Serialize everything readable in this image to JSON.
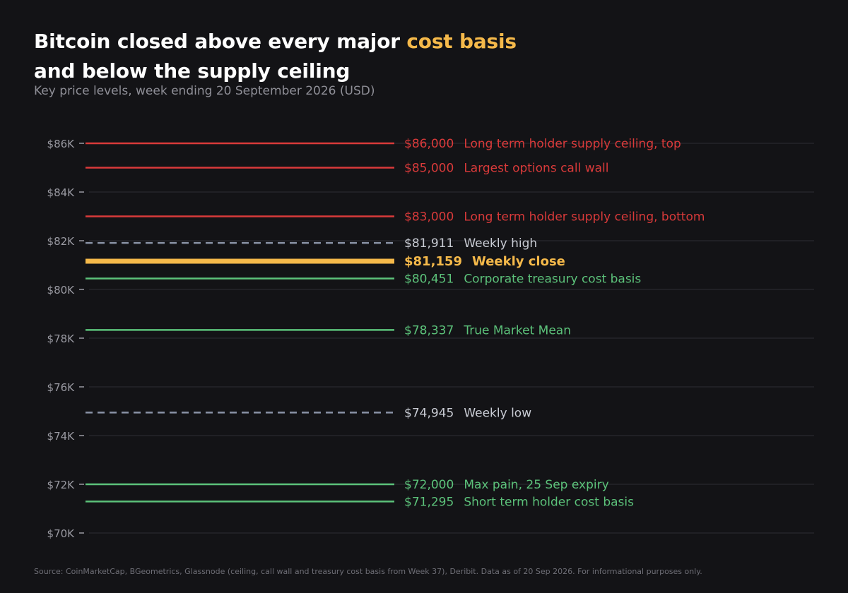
{
  "title": {
    "before": "Bitcoin closed above every major ",
    "highlight": "cost basis",
    "after": "and below the supply ceiling"
  },
  "subtitle": "Key price levels, week ending 20 September 2026 (USD)",
  "source": "Source: CoinMarketCap, BGeometrics, Glassnode (ceiling, call wall and treasury cost basis from Week 37), Deribit. Data as of 20 Sep 2026. For informational purposes only.",
  "colors": {
    "resistance": "#d93a3a",
    "support": "#5cc27a",
    "range": "#8a93a6",
    "close": "#f5b94a",
    "grid": "#2e2e34",
    "tick": "#9a9aa2"
  },
  "chart_data": {
    "type": "line",
    "title": "Bitcoin closed above every major cost basis and below the supply ceiling",
    "subtitle": "Key price levels, week ending 20 September 2026 (USD)",
    "ylim": [
      70000,
      86000
    ],
    "yticks": [
      {
        "value": 86000,
        "label": "$86K"
      },
      {
        "value": 84000,
        "label": "$84K"
      },
      {
        "value": 82000,
        "label": "$82K"
      },
      {
        "value": 80000,
        "label": "$80K"
      },
      {
        "value": 78000,
        "label": "$78K"
      },
      {
        "value": 76000,
        "label": "$76K"
      },
      {
        "value": 74000,
        "label": "$74K"
      },
      {
        "value": 72000,
        "label": "$72K"
      },
      {
        "value": 70000,
        "label": "$70K"
      }
    ],
    "grid": true,
    "levels": [
      {
        "value": 86000,
        "value_label": "$86,000",
        "name": "Long term holder supply ceiling, top",
        "kind": "resistance",
        "style": "solid"
      },
      {
        "value": 85000,
        "value_label": "$85,000",
        "name": "Largest options call wall",
        "kind": "resistance",
        "style": "solid"
      },
      {
        "value": 83000,
        "value_label": "$83,000",
        "name": "Long term holder supply ceiling, bottom",
        "kind": "resistance",
        "style": "solid"
      },
      {
        "value": 81911,
        "value_label": "$81,911",
        "name": "Weekly high",
        "kind": "range",
        "style": "dashed"
      },
      {
        "value": 81159,
        "value_label": "$81,159",
        "name": "Weekly close",
        "kind": "close",
        "style": "thick"
      },
      {
        "value": 80451,
        "value_label": "$80,451",
        "name": "Corporate treasury cost basis",
        "kind": "support",
        "style": "solid"
      },
      {
        "value": 78337,
        "value_label": "$78,337",
        "name": "True Market Mean",
        "kind": "support",
        "style": "solid"
      },
      {
        "value": 74945,
        "value_label": "$74,945",
        "name": "Weekly low",
        "kind": "range",
        "style": "dashed"
      },
      {
        "value": 72000,
        "value_label": "$72,000",
        "name": "Max pain, 25 Sep expiry",
        "kind": "support",
        "style": "solid"
      },
      {
        "value": 71295,
        "value_label": "$71,295",
        "name": "Short term holder cost basis",
        "kind": "support",
        "style": "solid"
      }
    ]
  }
}
